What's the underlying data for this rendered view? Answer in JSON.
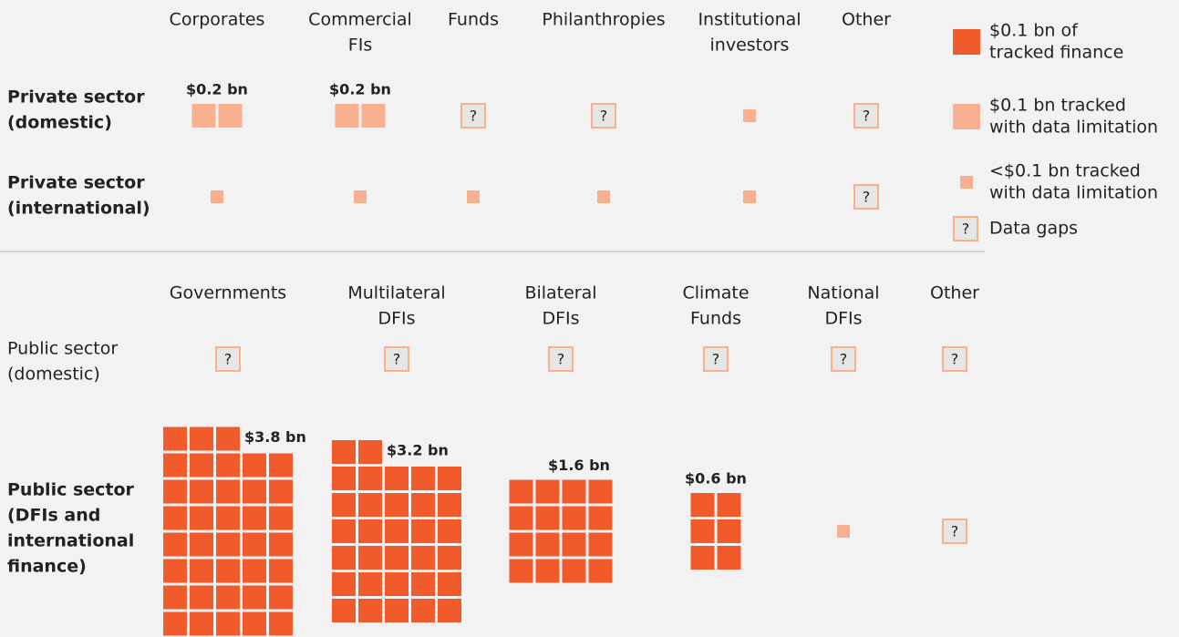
{
  "chart_data": {
    "type": "waffle",
    "unit": 0.1,
    "colors": {
      "tracked": "#f15a2b",
      "limited": "#f9b08f",
      "small": "#f9b08f",
      "gap_fill": "#e6e6e6",
      "gap_stroke": "#f9b08f"
    },
    "gap_symbol": "?",
    "legend": [
      {
        "status": "tracked",
        "lines": [
          "$0.1 bn of",
          "tracked finance"
        ]
      },
      {
        "status": "limited",
        "lines": [
          "$0.1 bn tracked",
          "with data limitation"
        ]
      },
      {
        "status": "small",
        "lines": [
          "<$0.1 bn tracked",
          "with data limitation"
        ]
      },
      {
        "status": "gap",
        "lines": [
          "Data gaps"
        ]
      }
    ],
    "sections": [
      {
        "columns": [
          [
            "Corporates"
          ],
          [
            "Commercial",
            "FIs"
          ],
          [
            "Funds"
          ],
          [
            "Philanthropies"
          ],
          [
            "Institutional",
            "investors"
          ],
          [
            "Other"
          ]
        ],
        "rows": [
          {
            "lines": [
              "Private sector",
              "(domestic)"
            ],
            "emphasis": true,
            "cells": [
              {
                "status": "limited",
                "value": 0.2,
                "label": "$0.2 bn"
              },
              {
                "status": "limited",
                "value": 0.2,
                "label": "$0.2 bn"
              },
              {
                "status": "gap"
              },
              {
                "status": "gap"
              },
              {
                "status": "small"
              },
              {
                "status": "gap"
              }
            ]
          },
          {
            "lines": [
              "Private sector",
              "(international)"
            ],
            "emphasis": true,
            "cells": [
              {
                "status": "small"
              },
              {
                "status": "small"
              },
              {
                "status": "small"
              },
              {
                "status": "small"
              },
              {
                "status": "small"
              },
              {
                "status": "gap"
              }
            ]
          }
        ]
      },
      {
        "columns": [
          [
            "Governments"
          ],
          [
            "Multilateral",
            "DFIs"
          ],
          [
            "Bilateral",
            "DFIs"
          ],
          [
            "Climate",
            "Funds"
          ],
          [
            "National",
            "DFIs"
          ],
          [
            "Other"
          ]
        ],
        "rows": [
          {
            "lines": [
              "Public sector",
              "(domestic)"
            ],
            "emphasis": false,
            "cells": [
              {
                "status": "gap"
              },
              {
                "status": "gap"
              },
              {
                "status": "gap"
              },
              {
                "status": "gap"
              },
              {
                "status": "gap"
              },
              {
                "status": "gap"
              }
            ]
          },
          {
            "lines": [
              "Public sector",
              "(DFIs and",
              "international",
              "finance)"
            ],
            "emphasis": true,
            "cells": [
              {
                "status": "tracked",
                "value": 3.8,
                "label": "$3.8 bn"
              },
              {
                "status": "tracked",
                "value": 3.2,
                "label": "$3.2 bn"
              },
              {
                "status": "tracked",
                "value": 1.6,
                "label": "$1.6 bn"
              },
              {
                "status": "tracked",
                "value": 0.6,
                "label": "$0.6 bn"
              },
              {
                "status": "small"
              },
              {
                "status": "gap"
              }
            ]
          }
        ]
      }
    ]
  }
}
